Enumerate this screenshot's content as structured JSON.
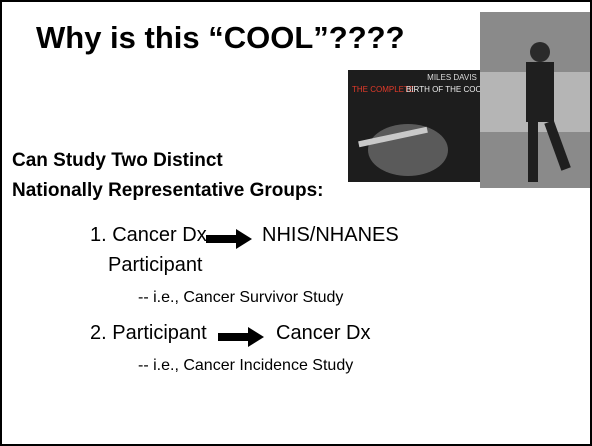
{
  "slide": {
    "title": "Why is this “COOL”????",
    "album": {
      "artist": "MILES DAVIS",
      "subtitle_1": "THE COMPLETE",
      "subtitle_2": "BIRTH OF THE COOL"
    },
    "heading_1": "Can Study Two Distinct",
    "heading_2": "Nationally Representative Groups:",
    "items": [
      {
        "left": "1. Cancer Dx",
        "right": "NHIS/NHANES",
        "continuation": "Participant",
        "note": "--   i.e., Cancer Survivor Study"
      },
      {
        "left": "2. Participant",
        "right": "Cancer Dx",
        "note": "--   i.e., Cancer Incidence Study"
      }
    ]
  }
}
